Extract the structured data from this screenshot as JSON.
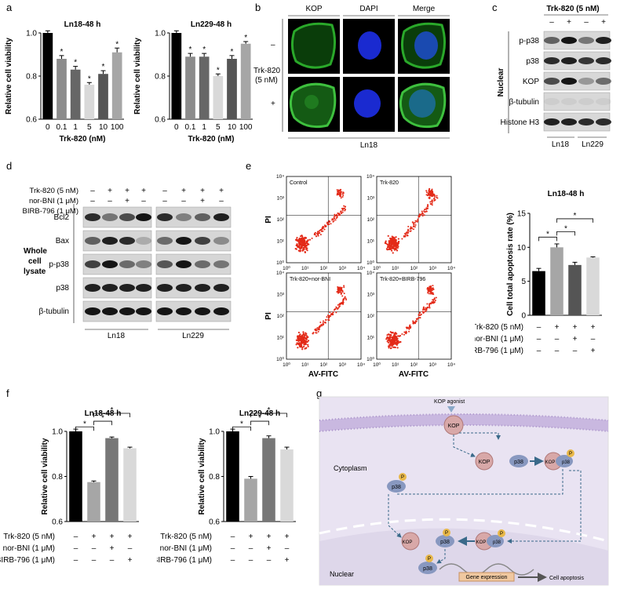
{
  "panel_letters": {
    "a": "a",
    "b": "b",
    "c": "c",
    "d": "d",
    "e": "e",
    "f": "f",
    "g": "g"
  },
  "chart_data": [
    {
      "id": "a1",
      "type": "bar",
      "title": "Ln18-48 h",
      "xlabel": "Trk-820 (nM)",
      "ylabel": "Relative cell viability",
      "categories": [
        "0",
        "0.1",
        "1",
        "5",
        "10",
        "100"
      ],
      "values": [
        1.0,
        0.88,
        0.83,
        0.76,
        0.81,
        0.91
      ],
      "errors": [
        0.01,
        0.015,
        0.015,
        0.01,
        0.015,
        0.02
      ],
      "significance": [
        "",
        "*",
        "*",
        "*",
        "*",
        "*"
      ],
      "colors": [
        "#000000",
        "#8c8c8c",
        "#666666",
        "#d9d9d9",
        "#555555",
        "#a6a6a6"
      ],
      "ylim": [
        0.6,
        1.0
      ],
      "yticks": [
        "0.6",
        "0.8",
        "1.0"
      ]
    },
    {
      "id": "a2",
      "type": "bar",
      "title": "Ln229-48 h",
      "xlabel": "Trk-820 (nM)",
      "ylabel": "Relative cell viability",
      "categories": [
        "0",
        "0.1",
        "1",
        "5",
        "10",
        "100"
      ],
      "values": [
        1.0,
        0.89,
        0.89,
        0.8,
        0.88,
        0.95
      ],
      "errors": [
        0.01,
        0.015,
        0.015,
        0.01,
        0.015,
        0.01
      ],
      "significance": [
        "",
        "*",
        "*",
        "*",
        "*",
        "*"
      ],
      "colors": [
        "#000000",
        "#8c8c8c",
        "#666666",
        "#d9d9d9",
        "#555555",
        "#a6a6a6"
      ],
      "ylim": [
        0.6,
        1.0
      ],
      "yticks": [
        "0.6",
        "0.8",
        "1.0"
      ]
    },
    {
      "id": "e1",
      "type": "bar",
      "title": "Ln18-48 h",
      "ylabel": "Cell total apoptosis rate (%)",
      "values": [
        6.5,
        10.0,
        7.4,
        8.5
      ],
      "errors": [
        0.4,
        0.5,
        0.4,
        0.1
      ],
      "colors": [
        "#000000",
        "#a6a6a6",
        "#555555",
        "#d9d9d9"
      ],
      "ylim": [
        0,
        15
      ],
      "yticks": [
        "0",
        "5",
        "10",
        "15"
      ]
    },
    {
      "id": "f1",
      "type": "bar",
      "title": "Ln18-48 h",
      "ylabel": "Relative cell viability",
      "values": [
        1.0,
        0.775,
        0.97,
        0.925
      ],
      "errors": [
        0.01,
        0.005,
        0.005,
        0.005
      ],
      "colors": [
        "#000000",
        "#a6a6a6",
        "#777777",
        "#d9d9d9"
      ],
      "ylim": [
        0.6,
        1.0
      ],
      "yticks": [
        "0.6",
        "0.8",
        "1.0"
      ]
    },
    {
      "id": "f2",
      "type": "bar",
      "title": "Ln229-48 h",
      "ylabel": "Relative cell viability",
      "values": [
        1.0,
        0.79,
        0.97,
        0.92
      ],
      "errors": [
        0.01,
        0.01,
        0.01,
        0.01
      ],
      "colors": [
        "#000000",
        "#a6a6a6",
        "#777777",
        "#d9d9d9"
      ],
      "ylim": [
        0.6,
        1.0
      ],
      "yticks": [
        "0.6",
        "0.8",
        "1.0"
      ]
    }
  ],
  "treatment_table": {
    "rows": [
      {
        "label": "Trk-820 (5 nM)",
        "values": [
          "–",
          "+",
          "+",
          "+"
        ]
      },
      {
        "label": "nor-BNI (1 μM)",
        "values": [
          "–",
          "–",
          "+",
          "–"
        ]
      },
      {
        "label": "BIRB-796 (1 μM)",
        "values": [
          "–",
          "–",
          "–",
          "+"
        ]
      }
    ]
  },
  "panel_b": {
    "columns": [
      "KOP",
      "DAPI",
      "Merge"
    ],
    "row_signs": [
      "–",
      "+"
    ],
    "side_label_line1": "Trk-820",
    "side_label_line2": "(5 nM)",
    "cell_line": "Ln18"
  },
  "panel_c": {
    "header": "Trk-820 (5 nM)",
    "signs": [
      "–",
      "+",
      "–",
      "+"
    ],
    "rows": [
      "p-p38",
      "p38",
      "KOP",
      "β-tubulin",
      "Histone H3"
    ],
    "side_label": "Nuclear",
    "cell_lines": [
      "Ln18",
      "Ln229"
    ]
  },
  "panel_d": {
    "rows": [
      "Bcl2",
      "Bax",
      "p-p38",
      "p38",
      "β-tubulin"
    ],
    "side_label": [
      "Whole",
      "cell",
      "lysate"
    ],
    "cell_lines": [
      "Ln18",
      "Ln229"
    ]
  },
  "panel_e_flow": {
    "plots": [
      "Control",
      "Trk-820",
      "Trk-820+nor-BNI",
      "Trk-820+BIRB-796"
    ],
    "ylabel": "PI",
    "xlabel": "AV-FITC",
    "ticks": [
      "10⁰",
      "10¹",
      "10²",
      "10³",
      "10⁴"
    ]
  },
  "panel_g": {
    "agonist": "KOP agonist",
    "cytoplasm": "Cytoplasm",
    "nuclear": "Nuclear",
    "kop": "KOP",
    "p38": "p38",
    "p": "P",
    "gene_expression": "Gene expression",
    "apoptosis": "Cell apoptosis"
  }
}
